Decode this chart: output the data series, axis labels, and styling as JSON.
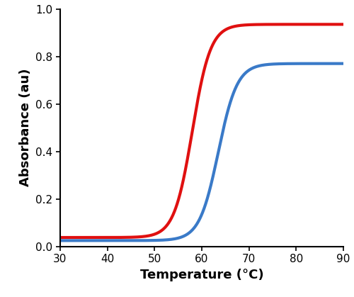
{
  "title": "",
  "xlabel": "Temperature (°C)",
  "ylabel": "Absorbance (au)",
  "xlim": [
    30,
    90
  ],
  "ylim": [
    0,
    1.0
  ],
  "xticks": [
    30,
    40,
    50,
    60,
    70,
    80,
    90
  ],
  "yticks": [
    0,
    0.2,
    0.4,
    0.6,
    0.8,
    1.0
  ],
  "blue_line": {
    "color": "#3a7ac8",
    "baseline": 0.025,
    "plateau": 0.77,
    "midpoint": 63.5,
    "slope": 0.5
  },
  "red_line": {
    "color": "#e01010",
    "baseline": 0.038,
    "plateau": 0.935,
    "midpoint": 58.0,
    "slope": 0.52
  },
  "linewidth": 3.0,
  "background_color": "#ffffff",
  "xlabel_fontsize": 13,
  "ylabel_fontsize": 13,
  "tick_fontsize": 11,
  "figsize": [
    5.0,
    4.19
  ],
  "dpi": 100
}
